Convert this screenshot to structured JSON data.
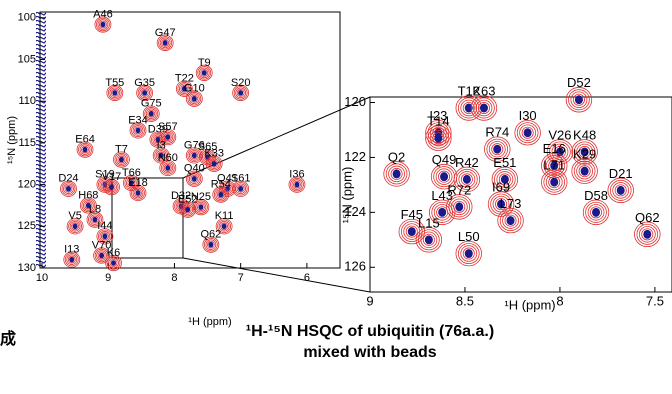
{
  "charts": [
    {
      "type": "scatter",
      "x_label": "¹H (ppm)",
      "y_label": "¹⁵N (ppm)",
      "xlim": [
        10.03,
        5.5
      ],
      "ylim": [
        99.3,
        130
      ],
      "xticks": [
        10,
        9,
        8,
        7,
        6
      ],
      "yticks": [
        100,
        105,
        110,
        115,
        120,
        125,
        130
      ],
      "color": "#e03030",
      "core_color": "#1a1a8c",
      "point_labels": [
        "A46",
        "G47",
        "T9",
        "T55",
        "G35",
        "T22",
        "G10",
        "S20",
        "G75",
        "D39",
        "S57",
        "E34",
        "E64",
        "T7",
        "I3",
        "N60",
        "G76",
        "S65",
        "K33",
        "D24",
        "S19",
        "V17",
        "T66",
        "E18",
        "Q40",
        "Q41",
        "S61",
        "R54",
        "H68",
        "D32",
        "N25",
        "E52",
        "I36",
        "K11",
        "L8",
        "V5",
        "I44",
        "Q62",
        "V70",
        "K6",
        "I13"
      ],
      "x": [
        9.08,
        8.14,
        7.55,
        8.9,
        8.45,
        7.85,
        7.7,
        7.0,
        8.35,
        8.25,
        8.1,
        8.55,
        9.35,
        8.8,
        8.2,
        8.1,
        7.7,
        7.5,
        7.4,
        9.6,
        9.05,
        8.95,
        8.65,
        8.55,
        7.7,
        7.2,
        7.0,
        7.3,
        9.3,
        7.9,
        7.6,
        7.8,
        6.15,
        7.25,
        9.2,
        9.5,
        9.05,
        7.45,
        9.1,
        8.92,
        9.55
      ],
      "values": [
        100.8,
        103.0,
        106.6,
        109.0,
        109.0,
        108.5,
        109.7,
        109.0,
        111.5,
        114.6,
        114.3,
        113.5,
        115.8,
        117.0,
        116.5,
        118.0,
        116.5,
        116.7,
        117.5,
        120.5,
        120.0,
        120.3,
        119.8,
        121.0,
        119.3,
        120.5,
        120.5,
        121.2,
        122.5,
        122.6,
        122.7,
        123.0,
        120.0,
        125.0,
        124.2,
        125.0,
        126.2,
        127.2,
        128.5,
        129.4,
        129.0
      ]
    },
    {
      "type": "scatter",
      "x_label": "¹H (ppm)",
      "y_label": "¹⁵N (ppm)",
      "xlim": [
        9,
        7.41
      ],
      "ylim": [
        119.8,
        126.9
      ],
      "xticks": [
        9,
        8.5,
        8,
        7.5
      ],
      "yticks": [
        120,
        122,
        124,
        126
      ],
      "color": "#e03030",
      "core_color": "#1a1a8c",
      "point_labels": [
        "T12",
        "K63",
        "D52",
        "I23",
        "T14",
        "I30",
        "V26",
        "K48",
        "Q2",
        "R74",
        "Q49",
        "R42",
        "E51",
        "E16",
        "K29",
        "L71",
        "D21",
        "L43",
        "R72",
        "I69",
        "L73",
        "D58",
        "F45",
        "L15",
        "L50",
        "Q62"
      ],
      "x": [
        8.48,
        8.4,
        7.9,
        8.64,
        8.64,
        8.17,
        8.0,
        7.87,
        8.86,
        8.33,
        8.61,
        8.49,
        8.29,
        8.03,
        7.87,
        8.03,
        7.68,
        8.62,
        8.53,
        8.31,
        8.26,
        7.81,
        8.78,
        8.69,
        8.48,
        7.54
      ],
      "values": [
        120.2,
        120.2,
        119.9,
        121.1,
        121.3,
        121.1,
        121.8,
        121.8,
        122.6,
        121.7,
        122.7,
        122.8,
        122.8,
        122.3,
        122.5,
        122.9,
        123.2,
        124.0,
        123.8,
        123.7,
        124.3,
        124.0,
        124.7,
        125.0,
        125.5,
        124.8
      ]
    }
  ],
  "caption": [
    "¹H-¹⁵N HSQC of ubiquitin (76a.a.)",
    "mixed with beads"
  ],
  "fragment": "成"
}
